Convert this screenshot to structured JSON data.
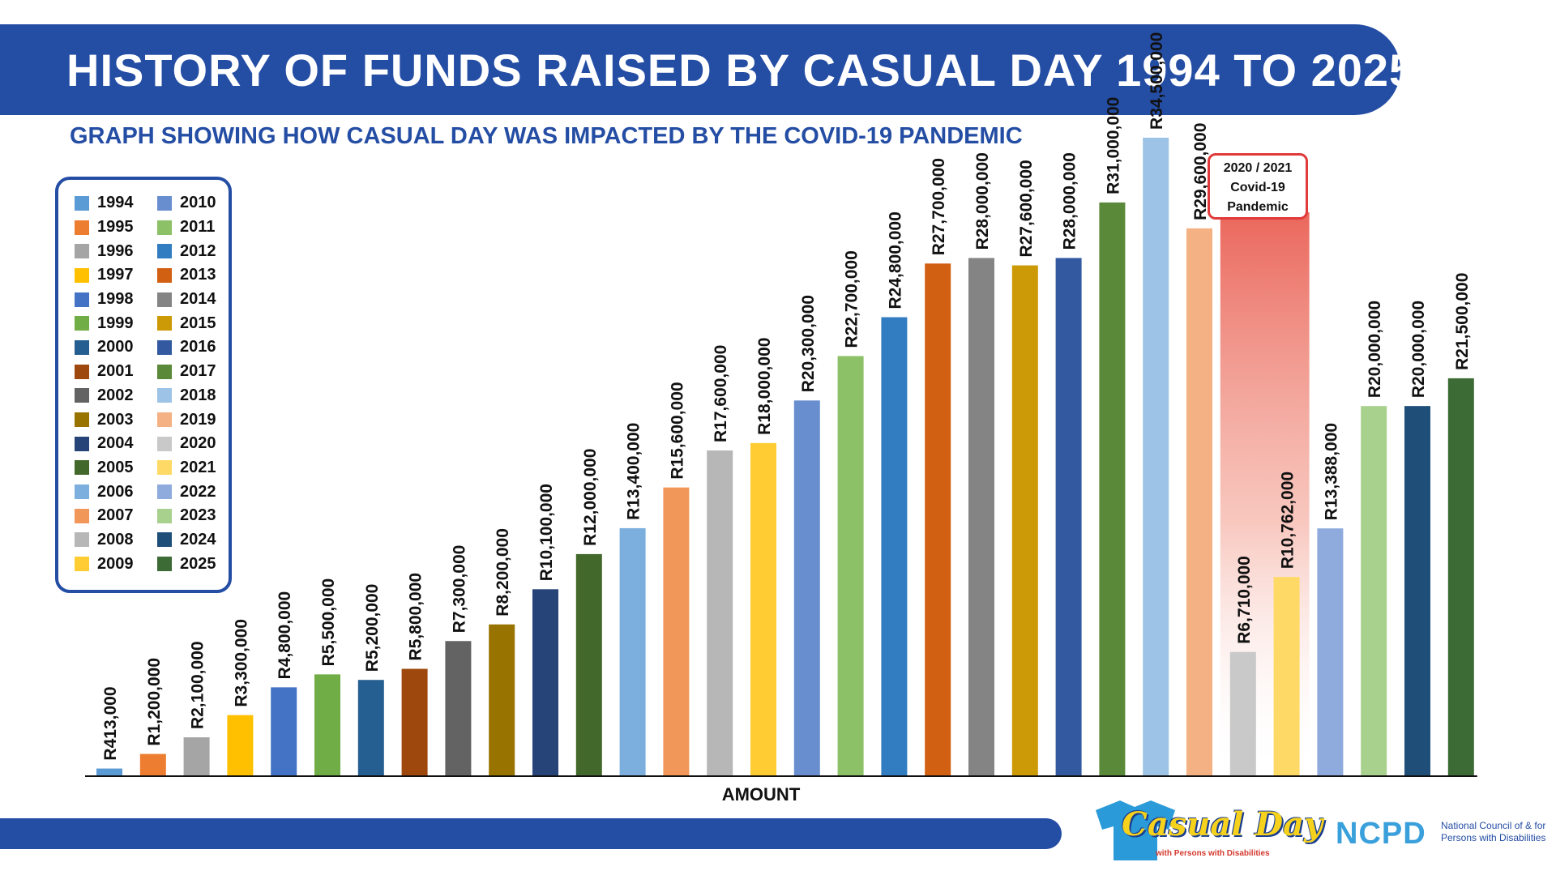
{
  "header": {
    "title": "HISTORY OF FUNDS RAISED BY CASUAL DAY 1994 TO 2025",
    "subtitle": "GRAPH SHOWING HOW CASUAL DAY WAS IMPACTED BY THE COVID-19 PANDEMIC"
  },
  "annotation": {
    "line1": "2020 / 2021",
    "line2": "Covid-19",
    "line3": "Pandemic",
    "color": "#e03a3a"
  },
  "logos": {
    "casual_day": "Casual Day",
    "casual_day_tagline": "with Persons with Disabilities",
    "ncpd": "NCPD",
    "ncpd_line1": "National Council of & for",
    "ncpd_line2": "Persons with Disabilities"
  },
  "chart_data": {
    "type": "bar",
    "title": "HISTORY OF FUNDS RAISED BY CASUAL DAY 1994 TO 2025",
    "subtitle": "GRAPH SHOWING HOW CASUAL DAY WAS IMPACTED BY THE COVID-19 PANDEMIC",
    "xlabel": "AMOUNT",
    "ylabel": "",
    "ylim": [
      0,
      38000000
    ],
    "grid": false,
    "legend_position": "left",
    "categories": [
      "1994",
      "1995",
      "1996",
      "1997",
      "1998",
      "1999",
      "2000",
      "2001",
      "2002",
      "2003",
      "2004",
      "2005",
      "2006",
      "2007",
      "2008",
      "2009",
      "2010",
      "2011",
      "2012",
      "2013",
      "2014",
      "2015",
      "2016",
      "2017",
      "2018",
      "2019",
      "2020",
      "2021",
      "2022",
      "2023",
      "2024",
      "2025"
    ],
    "values": [
      413000,
      1200000,
      2100000,
      3300000,
      4800000,
      5500000,
      5200000,
      5800000,
      7300000,
      8200000,
      10100000,
      12000000,
      13400000,
      15600000,
      17600000,
      18000000,
      20300000,
      22700000,
      24800000,
      27700000,
      28000000,
      27600000,
      28000000,
      31000000,
      34500000,
      29600000,
      6710000,
      10762000,
      13388000,
      20000000,
      20000000,
      21500000
    ],
    "labels": [
      "R413,000",
      "R1,200,000",
      "R2,100,000",
      "R3,300,000",
      "R4,800,000",
      "R5,500,000",
      "R5,200,000",
      "R5,800,000",
      "R7,300,000",
      "R8,200,000",
      "R10,100,000",
      "R12,000,000",
      "R13,400,000",
      "R15,600,000",
      "R17,600,000",
      "R18,000,000",
      "R20,300,000",
      "R22,700,000",
      "R24,800,000",
      "R27,700,000",
      "R28,000,000",
      "R27,600,000",
      "R28,000,000",
      "R31,000,000",
      "R34,500,000",
      "R29,600,000",
      "R6,710,000",
      "R10,762,000",
      "R13,388,000",
      "R20,000,000",
      "R20,000,000",
      "R21,500,000"
    ],
    "colors": [
      "#5b9bd5",
      "#ed7d31",
      "#a5a5a5",
      "#ffc000",
      "#4472c4",
      "#70ad47",
      "#255e91",
      "#9e480e",
      "#636363",
      "#997300",
      "#264478",
      "#43682b",
      "#7cafdd",
      "#f1975a",
      "#b7b7b7",
      "#ffcd33",
      "#698ed0",
      "#8cc168",
      "#327dc2",
      "#d26012",
      "#848484",
      "#cc9a06",
      "#335aa1",
      "#5a8a39",
      "#9dc3e6",
      "#f4b183",
      "#c9c9c9",
      "#ffd966",
      "#8faadc",
      "#a9d18e",
      "#1f4e79",
      "#3d6b35"
    ],
    "highlight": {
      "categories": [
        "2020",
        "2021"
      ],
      "label": "2020 / 2021 Covid-19 Pandemic"
    }
  }
}
